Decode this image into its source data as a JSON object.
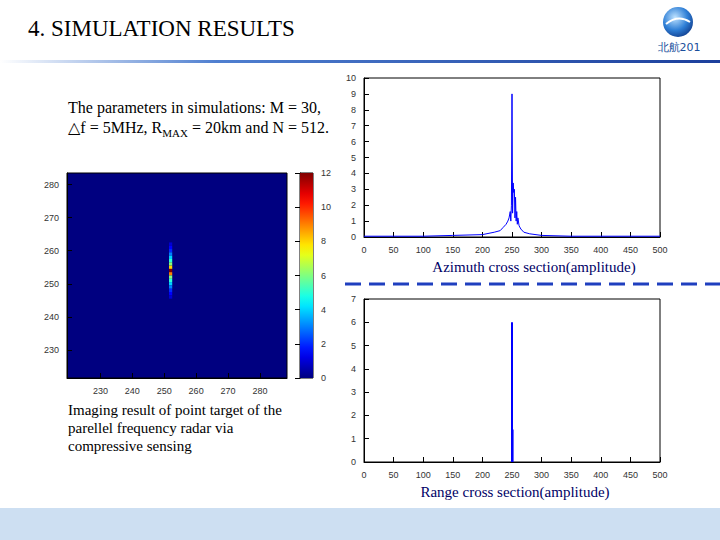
{
  "slide": {
    "title": "4. SIMULATION RESULTS",
    "logo_text": "北航201",
    "parameters": {
      "before": "The parameters in simulations: M = 30, △f = 5MHz, R",
      "subscript": "MAX",
      "after": " = 20km and N = 512."
    }
  },
  "chart_data": [
    {
      "type": "heatmap",
      "caption": "Imaging result of point target of the parellel frequency radar via compressive sensing",
      "xlim": [
        219.5,
        288.5
      ],
      "xticks": [
        230,
        240,
        250,
        260,
        270,
        280
      ],
      "ylim": [
        221.5,
        283.5
      ],
      "yticks": [
        230,
        240,
        250,
        260,
        270,
        280
      ],
      "cells": [
        [
          252,
          262,
          1
        ],
        [
          252,
          261,
          1.5
        ],
        [
          252,
          260,
          2
        ],
        [
          252,
          259,
          3
        ],
        [
          252,
          258,
          4
        ],
        [
          252,
          257,
          5
        ],
        [
          252,
          256,
          6
        ],
        [
          252,
          255,
          8
        ],
        [
          252,
          254,
          12
        ],
        [
          252,
          253,
          9
        ],
        [
          252,
          252,
          6
        ],
        [
          252,
          251,
          5
        ],
        [
          252,
          250,
          4
        ],
        [
          252,
          249,
          3
        ],
        [
          252,
          248,
          2
        ],
        [
          252,
          247,
          1.5
        ],
        [
          252,
          246,
          1
        ]
      ],
      "colorbar": {
        "range": [
          0,
          12
        ],
        "ticks": [
          0,
          2,
          4,
          6,
          8,
          10,
          12
        ]
      }
    },
    {
      "type": "line",
      "title": "Azimuth cross section(amplitude)",
      "color": "#0000ff",
      "x": [
        0,
        50,
        100,
        150,
        200,
        220,
        230,
        235,
        240,
        243,
        245,
        247,
        248,
        249,
        250,
        251,
        252,
        253,
        254,
        255,
        256,
        257,
        258,
        259,
        260,
        262,
        265,
        270,
        280,
        300,
        350,
        400,
        450,
        500
      ],
      "values": [
        0.05,
        0.05,
        0.05,
        0.1,
        0.15,
        0.3,
        0.4,
        0.6,
        0.8,
        1.0,
        1.2,
        1.6,
        1.0,
        2.0,
        9.0,
        1.5,
        3.4,
        2.8,
        3.0,
        1.2,
        2.5,
        1.0,
        1.6,
        0.8,
        1.2,
        0.7,
        0.5,
        0.3,
        0.2,
        0.1,
        0.05,
        0.05,
        0.05,
        0.05
      ],
      "xlim": [
        0,
        500
      ],
      "xticks": [
        0,
        50,
        100,
        150,
        200,
        250,
        300,
        350,
        400,
        450,
        500
      ],
      "ylim": [
        0,
        10
      ],
      "yticks": [
        0,
        1,
        2,
        3,
        4,
        5,
        6,
        7,
        8,
        9,
        10
      ]
    },
    {
      "type": "stem",
      "title": "Range cross section(amplitude)",
      "color": "#0000ff",
      "x": [
        250,
        251
      ],
      "values": [
        6,
        1.4
      ],
      "xlim": [
        0,
        500
      ],
      "xticks": [
        0,
        50,
        100,
        150,
        200,
        250,
        300,
        350,
        400,
        450,
        500
      ],
      "ylim": [
        0,
        7
      ],
      "yticks": [
        0,
        1,
        2,
        3,
        4,
        5,
        6,
        7
      ]
    }
  ]
}
